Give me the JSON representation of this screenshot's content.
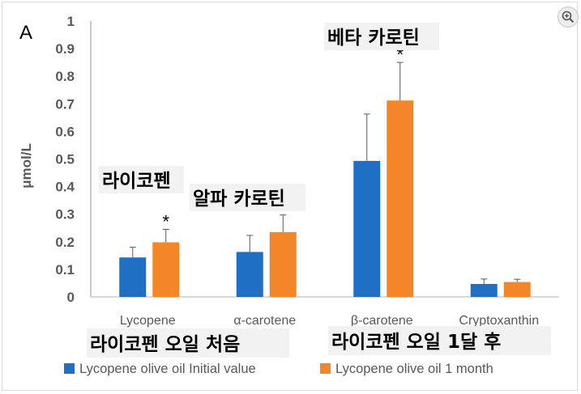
{
  "chart_data": {
    "type": "bar",
    "panel_label": "A",
    "title": "",
    "xlabel": "",
    "ylabel": "μmol/L",
    "ylim": [
      0,
      1
    ],
    "yticks": [
      "0",
      "0.1",
      "0.2",
      "0.3",
      "0.4",
      "0.5",
      "0.6",
      "0.7",
      "0.8",
      "0.9",
      "1"
    ],
    "categories": [
      "Lycopene",
      "α-carotene",
      "β-carotene",
      "Cryptoxanthin"
    ],
    "series": [
      {
        "name": "Lycopene olive oil Initial value",
        "color": "#1f6fc5",
        "values": [
          0.143,
          0.163,
          0.493,
          0.047
        ],
        "errors": [
          0.037,
          0.06,
          0.17,
          0.018
        ]
      },
      {
        "name": "Lycopene olive oil 1 month",
        "color": "#f4862a",
        "values": [
          0.198,
          0.235,
          0.712,
          0.054
        ],
        "errors": [
          0.047,
          0.062,
          0.138,
          0.01
        ]
      }
    ],
    "significance": [
      "*",
      "*",
      "*",
      ""
    ],
    "annotations": {
      "lycopene": "라이코펜",
      "alpha": "알파 카로틴",
      "beta": "베타 카로틴",
      "initial": "라이코펜 오일 처음",
      "month": "라이코펜 오일 1달 후"
    },
    "legend_position": "bottom",
    "grid": false
  },
  "icons": {
    "zoom": "zoom-in-icon"
  }
}
